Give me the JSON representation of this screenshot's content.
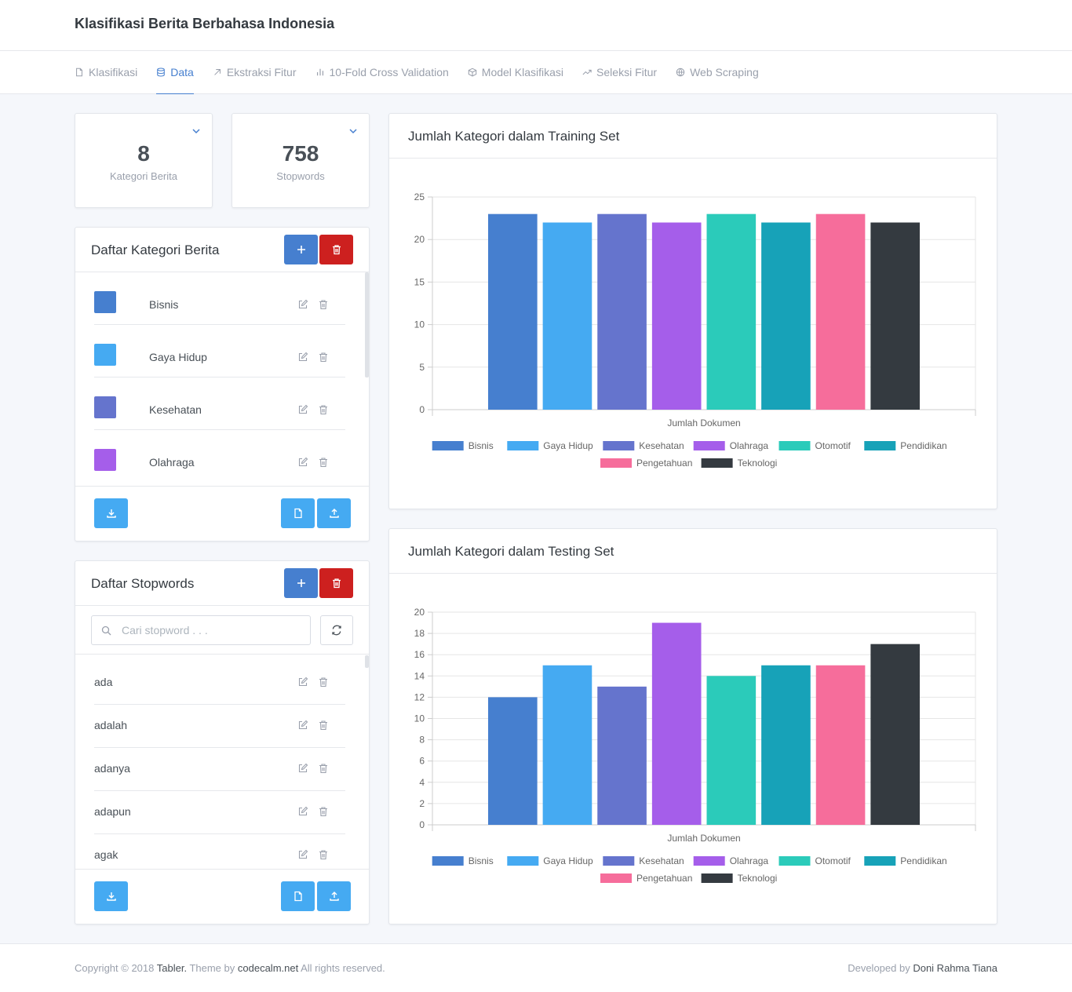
{
  "header": {
    "brand": "Klasifikasi Berita Berbahasa Indonesia"
  },
  "nav": [
    {
      "label": "Klasifikasi",
      "icon": "file-icon",
      "active": false
    },
    {
      "label": "Data",
      "icon": "database-icon",
      "active": true
    },
    {
      "label": "Ekstraksi Fitur",
      "icon": "arrow-up-right-icon",
      "active": false
    },
    {
      "label": "10-Fold Cross Validation",
      "icon": "bar-chart-icon",
      "active": false
    },
    {
      "label": "Model Klasifikasi",
      "icon": "box-icon",
      "active": false
    },
    {
      "label": "Seleksi Fitur",
      "icon": "trending-up-icon",
      "active": false
    },
    {
      "label": "Web Scraping",
      "icon": "globe-icon",
      "active": false
    }
  ],
  "stats": {
    "kategori": {
      "value": "8",
      "label": "Kategori Berita"
    },
    "stopwords": {
      "value": "758",
      "label": "Stopwords"
    }
  },
  "kategori_card": {
    "title": "Daftar Kategori Berita",
    "items": [
      {
        "label": "Bisnis",
        "color": "#467fcf"
      },
      {
        "label": "Gaya Hidup",
        "color": "#45aaf2"
      },
      {
        "label": "Kesehatan",
        "color": "#6574cd"
      },
      {
        "label": "Olahraga",
        "color": "#a55eea"
      }
    ]
  },
  "stopwords_card": {
    "title": "Daftar Stopwords",
    "search_placeholder": "Cari stopword . . .",
    "items": [
      "ada",
      "adalah",
      "adanya",
      "adapun",
      "agak"
    ]
  },
  "footer": {
    "copyright_prefix": "Copyright © 2018",
    "tabler": "Tabler.",
    "theme_by": "Theme by",
    "codecalm": "codecalm.net",
    "rights": "All rights reserved.",
    "developed_by": "Developed by",
    "developer": "Doni Rahma Tiana"
  },
  "chart_data": [
    {
      "type": "bar",
      "title": "Jumlah Kategori dalam Training Set",
      "xlabel": "Jumlah Dokumen",
      "ylim": [
        0,
        25
      ],
      "yticks": [
        0,
        5,
        10,
        15,
        20,
        25
      ],
      "grid": true,
      "legend": "bottom",
      "series": [
        {
          "name": "Bisnis",
          "value": 23,
          "color": "#467fcf"
        },
        {
          "name": "Gaya Hidup",
          "value": 22,
          "color": "#45aaf2"
        },
        {
          "name": "Kesehatan",
          "value": 23,
          "color": "#6574cd"
        },
        {
          "name": "Olahraga",
          "value": 22,
          "color": "#a55eea"
        },
        {
          "name": "Otomotif",
          "value": 23,
          "color": "#2bcbba"
        },
        {
          "name": "Pendidikan",
          "value": 22,
          "color": "#17a2b8"
        },
        {
          "name": "Pengetahuan",
          "value": 23,
          "color": "#f66d9b"
        },
        {
          "name": "Teknologi",
          "value": 22,
          "color": "#343a40"
        }
      ]
    },
    {
      "type": "bar",
      "title": "Jumlah Kategori dalam Testing Set",
      "xlabel": "Jumlah Dokumen",
      "ylim": [
        0,
        20
      ],
      "yticks": [
        0,
        2,
        4,
        6,
        8,
        10,
        12,
        14,
        16,
        18,
        20
      ],
      "grid": true,
      "legend": "bottom",
      "series": [
        {
          "name": "Bisnis",
          "value": 12,
          "color": "#467fcf"
        },
        {
          "name": "Gaya Hidup",
          "value": 15,
          "color": "#45aaf2"
        },
        {
          "name": "Kesehatan",
          "value": 13,
          "color": "#6574cd"
        },
        {
          "name": "Olahraga",
          "value": 19,
          "color": "#a55eea"
        },
        {
          "name": "Otomotif",
          "value": 14,
          "color": "#2bcbba"
        },
        {
          "name": "Pendidikan",
          "value": 15,
          "color": "#17a2b8"
        },
        {
          "name": "Pengetahuan",
          "value": 15,
          "color": "#f66d9b"
        },
        {
          "name": "Teknologi",
          "value": 17,
          "color": "#343a40"
        }
      ]
    }
  ]
}
